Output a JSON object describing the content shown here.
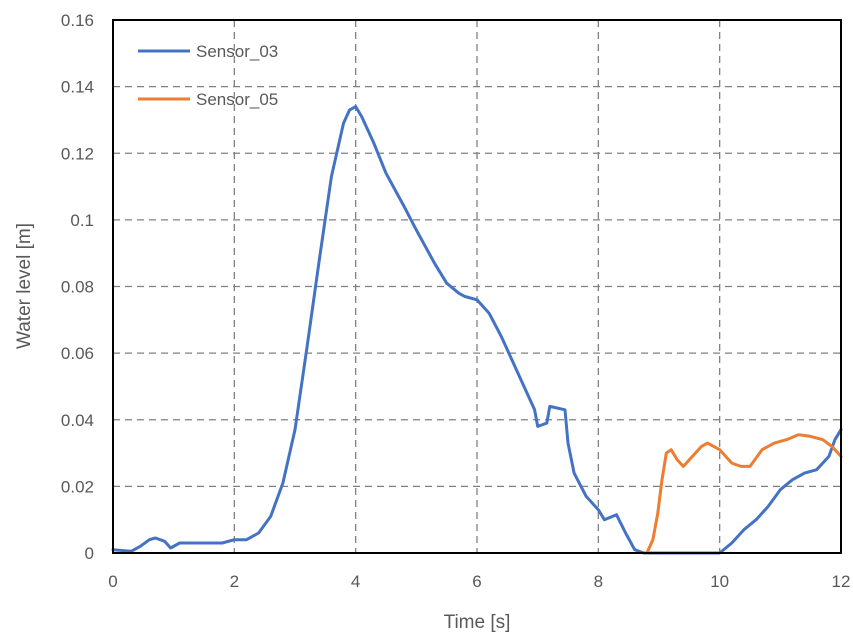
{
  "chart_data": {
    "type": "line",
    "xlabel": "Time [s]",
    "ylabel": "Water level [m]",
    "xlim": [
      0,
      12
    ],
    "ylim": [
      0,
      0.16
    ],
    "x_ticks": [
      "0",
      "2",
      "4",
      "6",
      "8",
      "10",
      "12"
    ],
    "y_ticks": [
      "0",
      "0.02",
      "0.04",
      "0.06",
      "0.08",
      "0.1",
      "0.12",
      "0.14",
      "0.16"
    ],
    "grid": true,
    "legend_position": "top-left",
    "series": [
      {
        "name": "Sensor_03",
        "color": "#4472C4",
        "points": [
          [
            0,
            0.001
          ],
          [
            0.3,
            0.0005
          ],
          [
            0.45,
            0.002
          ],
          [
            0.6,
            0.004
          ],
          [
            0.7,
            0.0045
          ],
          [
            0.85,
            0.0035
          ],
          [
            0.95,
            0.0015
          ],
          [
            1.1,
            0.003
          ],
          [
            1.5,
            0.003
          ],
          [
            1.8,
            0.003
          ],
          [
            2.0,
            0.004
          ],
          [
            2.2,
            0.004
          ],
          [
            2.4,
            0.006
          ],
          [
            2.6,
            0.011
          ],
          [
            2.8,
            0.021
          ],
          [
            3.0,
            0.037
          ],
          [
            3.2,
            0.062
          ],
          [
            3.4,
            0.088
          ],
          [
            3.6,
            0.113
          ],
          [
            3.8,
            0.129
          ],
          [
            3.9,
            0.133
          ],
          [
            4.0,
            0.134
          ],
          [
            4.1,
            0.131
          ],
          [
            4.3,
            0.123
          ],
          [
            4.5,
            0.114
          ],
          [
            4.8,
            0.104
          ],
          [
            5.0,
            0.097
          ],
          [
            5.3,
            0.087
          ],
          [
            5.5,
            0.081
          ],
          [
            5.7,
            0.078
          ],
          [
            5.8,
            0.077
          ],
          [
            6.0,
            0.076
          ],
          [
            6.2,
            0.072
          ],
          [
            6.4,
            0.065
          ],
          [
            6.6,
            0.057
          ],
          [
            6.8,
            0.049
          ],
          [
            6.95,
            0.043
          ],
          [
            7.0,
            0.038
          ],
          [
            7.15,
            0.039
          ],
          [
            7.2,
            0.044
          ],
          [
            7.45,
            0.043
          ],
          [
            7.5,
            0.033
          ],
          [
            7.6,
            0.024
          ],
          [
            7.8,
            0.017
          ],
          [
            8.0,
            0.013
          ],
          [
            8.1,
            0.01
          ],
          [
            8.3,
            0.0115
          ],
          [
            8.45,
            0.006
          ],
          [
            8.6,
            0.001
          ],
          [
            8.75,
            0
          ],
          [
            10.0,
            0
          ],
          [
            10.2,
            0.003
          ],
          [
            10.4,
            0.007
          ],
          [
            10.6,
            0.01
          ],
          [
            10.8,
            0.014
          ],
          [
            11.0,
            0.019
          ],
          [
            11.2,
            0.022
          ],
          [
            11.4,
            0.024
          ],
          [
            11.6,
            0.025
          ],
          [
            11.8,
            0.029
          ],
          [
            11.9,
            0.034
          ],
          [
            12.0,
            0.037
          ]
        ]
      },
      {
        "name": "Sensor_05",
        "color": "#ED7D31",
        "points": [
          [
            8.8,
            0
          ],
          [
            8.9,
            0.004
          ],
          [
            8.98,
            0.012
          ],
          [
            9.05,
            0.022
          ],
          [
            9.12,
            0.03
          ],
          [
            9.2,
            0.031
          ],
          [
            9.3,
            0.028
          ],
          [
            9.4,
            0.026
          ],
          [
            9.55,
            0.029
          ],
          [
            9.7,
            0.032
          ],
          [
            9.8,
            0.033
          ],
          [
            10.0,
            0.031
          ],
          [
            10.2,
            0.027
          ],
          [
            10.35,
            0.026
          ],
          [
            10.5,
            0.026
          ],
          [
            10.7,
            0.031
          ],
          [
            10.9,
            0.033
          ],
          [
            11.1,
            0.034
          ],
          [
            11.3,
            0.0355
          ],
          [
            11.5,
            0.035
          ],
          [
            11.7,
            0.034
          ],
          [
            11.85,
            0.032
          ],
          [
            12.0,
            0.029
          ]
        ]
      }
    ]
  }
}
